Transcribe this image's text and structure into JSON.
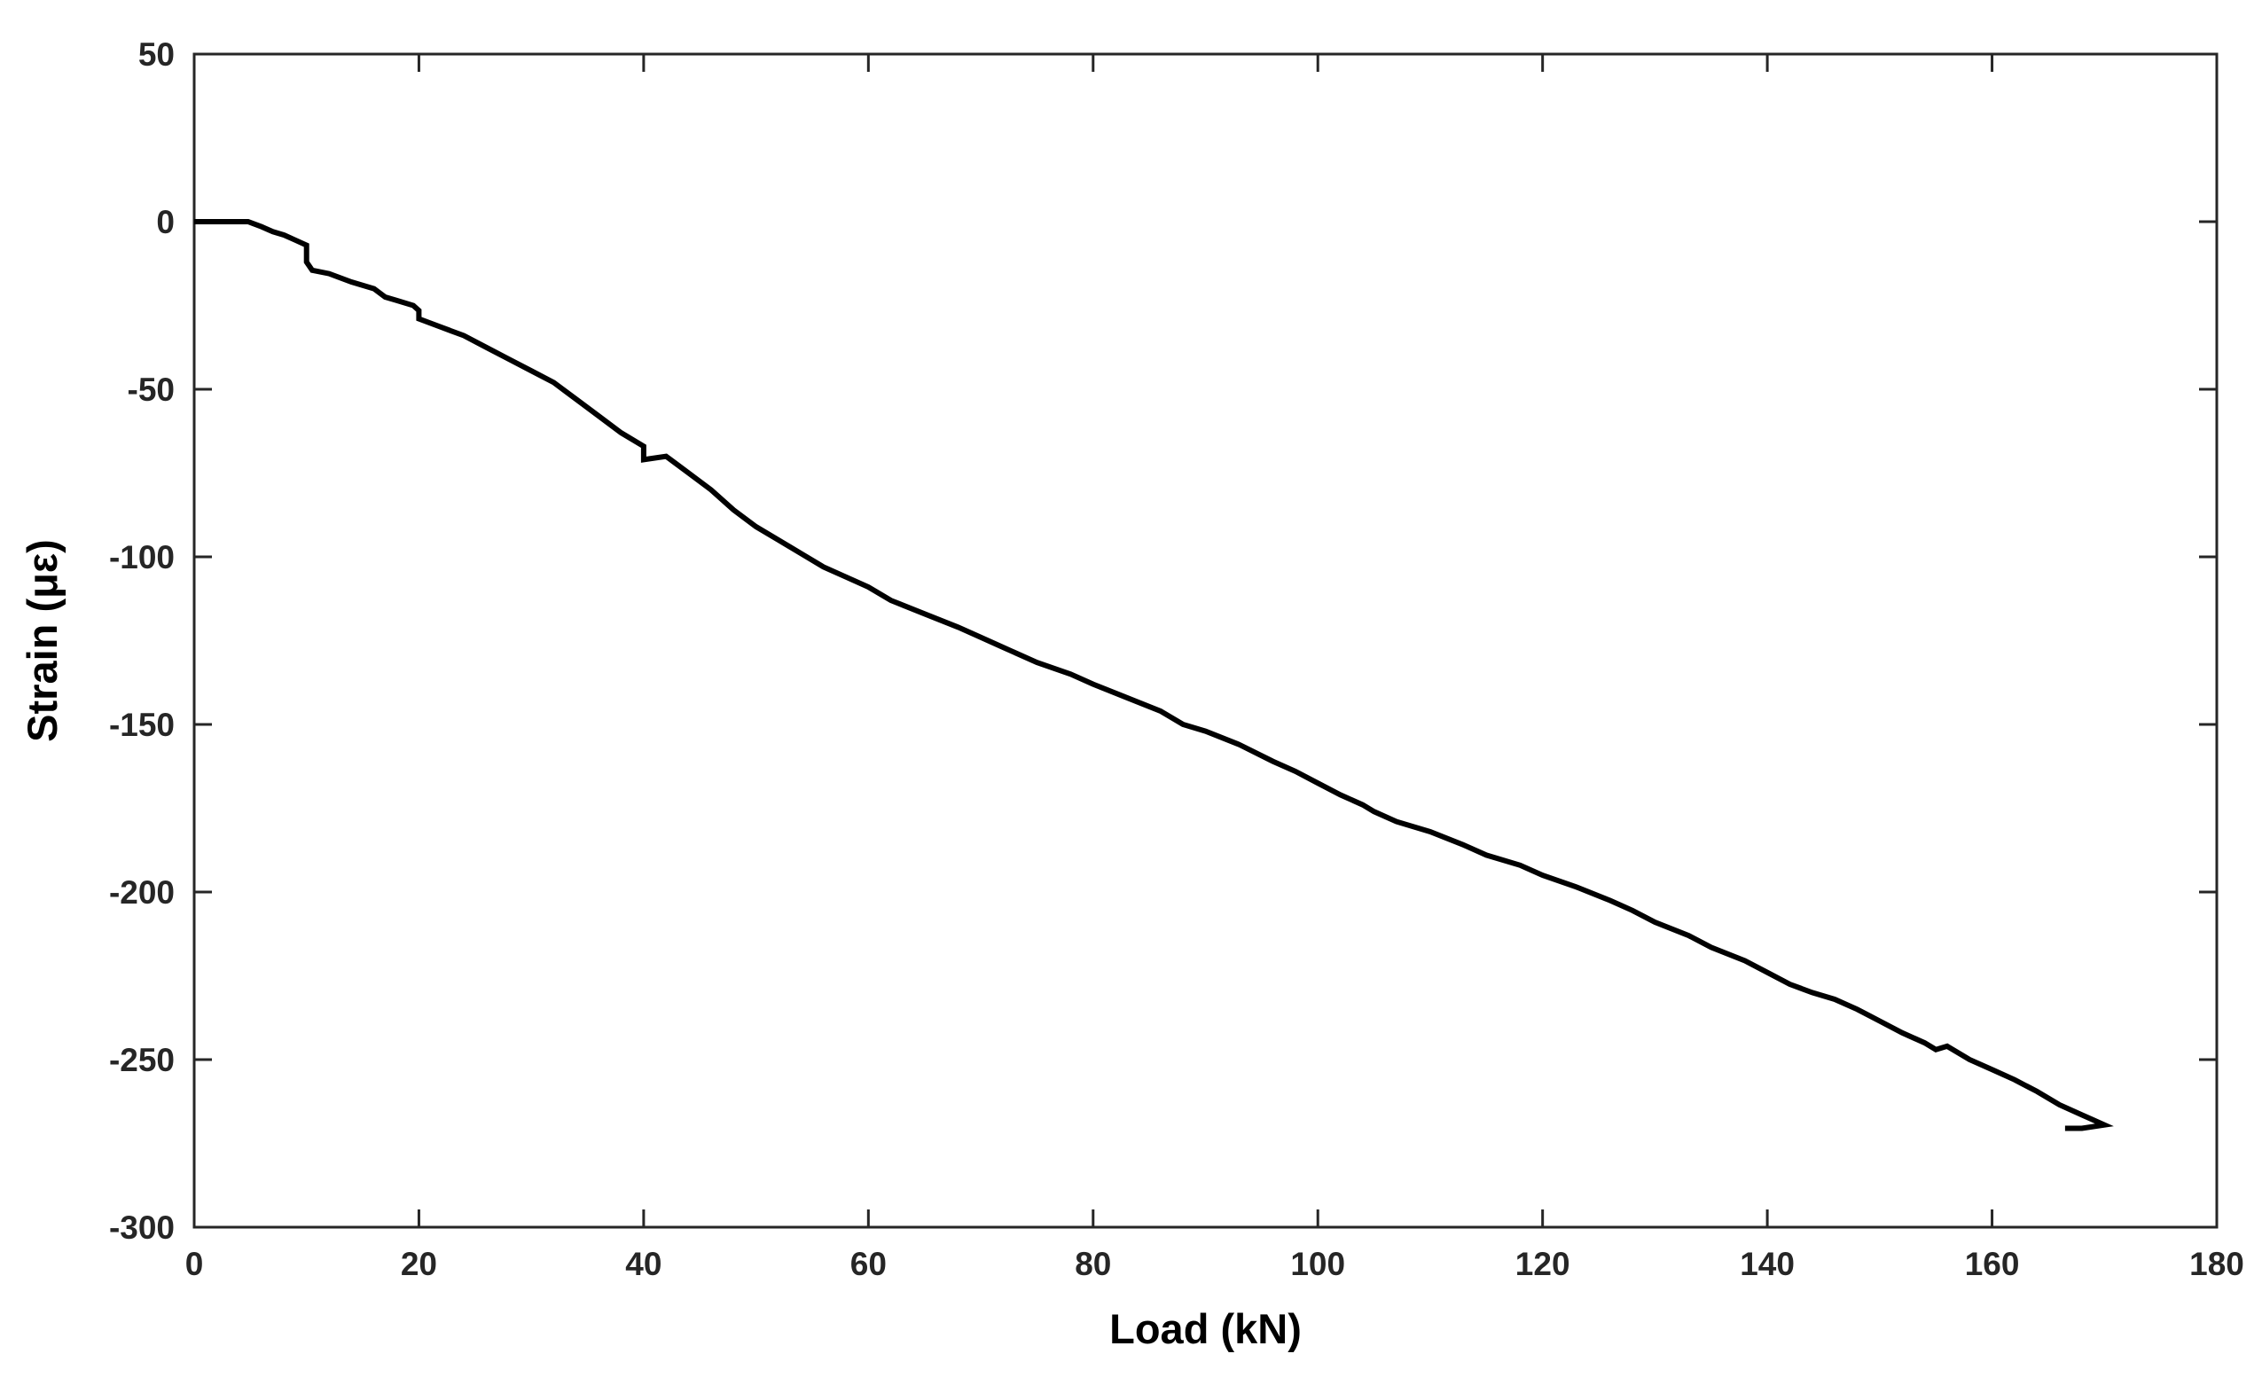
{
  "chart_data": {
    "type": "line",
    "title": "",
    "xlabel": "Load (kN)",
    "ylabel": "Strain (με)",
    "xlim": [
      0,
      180
    ],
    "ylim": [
      -300,
      50
    ],
    "xticks": [
      0,
      20,
      40,
      60,
      80,
      100,
      120,
      140,
      160,
      180
    ],
    "yticks": [
      50,
      0,
      -50,
      -100,
      -150,
      -200,
      -250,
      -300
    ],
    "xtick_labels": [
      "0",
      "20",
      "40",
      "60",
      "80",
      "100",
      "120",
      "140",
      "160",
      "180"
    ],
    "ytick_labels": [
      "50",
      "0",
      "-50",
      "-100",
      "-150",
      "-200",
      "-250",
      "-300"
    ],
    "grid": false,
    "box": true,
    "line_color": "#000000",
    "axis_color": "#262626",
    "series": [
      {
        "x": [
          0,
          2,
          4,
          4.8,
          6,
          7,
          8,
          9,
          10,
          10,
          10.5,
          12,
          14,
          16,
          17,
          18,
          19.5,
          20,
          20,
          22,
          24,
          26,
          28,
          30,
          32,
          34,
          36,
          38,
          40,
          40,
          42,
          44,
          46,
          48,
          50,
          52,
          54,
          56,
          58,
          60,
          62,
          65,
          68,
          70,
          72,
          75,
          78,
          80,
          83,
          86,
          88,
          90,
          93,
          96,
          98,
          100,
          102,
          104,
          105,
          107,
          110,
          113,
          115,
          118,
          120,
          123,
          126,
          128,
          130,
          133,
          135,
          138,
          140,
          142,
          144,
          146,
          148,
          150,
          152,
          154,
          155,
          156,
          158,
          160,
          162,
          164,
          166,
          168,
          169,
          170,
          168,
          166.5
        ],
        "y": [
          0,
          0,
          0,
          0,
          -1.5,
          -3,
          -4,
          -5.5,
          -7,
          -12,
          -14.5,
          -15.5,
          -18,
          -20,
          -22.5,
          -23.5,
          -25,
          -26.5,
          -29,
          -31.5,
          -34,
          -37.5,
          -41,
          -44.5,
          -48,
          -53,
          -58,
          -63,
          -67,
          -71,
          -70,
          -75,
          -80,
          -86,
          -91,
          -95,
          -99,
          -103,
          -106,
          -109,
          -113,
          -117,
          -121,
          -124,
          -127,
          -131.5,
          -135,
          -138,
          -142,
          -146,
          -150,
          -152,
          -156,
          -161,
          -164,
          -167.5,
          -171,
          -174,
          -176,
          -179,
          -182,
          -186,
          -189,
          -192,
          -195,
          -198.5,
          -202.5,
          -205.5,
          -209,
          -213,
          -216.5,
          -220.5,
          -224,
          -227.5,
          -230,
          -232,
          -235,
          -238.5,
          -242,
          -245,
          -247,
          -246,
          -250,
          -253,
          -256,
          -259.5,
          -263.5,
          -266.5,
          -268,
          -269.5,
          -270.5,
          -270.5
        ]
      }
    ]
  }
}
